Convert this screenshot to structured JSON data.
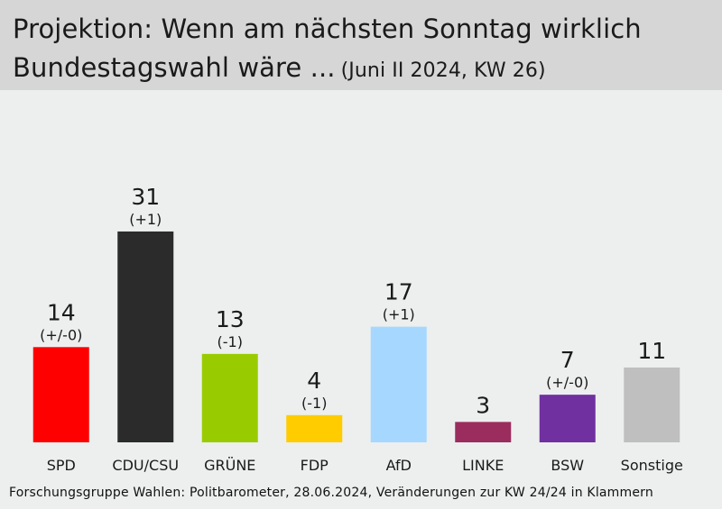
{
  "header": {
    "title_line1": "Projektion: Wenn am nächsten Sonntag wirklich",
    "title_line2": "Bundestagswahl wäre ...",
    "subtitle": "(Juni II 2024, KW 26)"
  },
  "footer": {
    "source": "Forschungsgruppe Wahlen: Politbarometer, 28.06.2024, Veränderungen zur KW 24/24 in Klammern"
  },
  "chart_data": {
    "type": "bar",
    "title": "Projektion: Wenn am nächsten Sonntag wirklich Bundestagswahl wäre ...",
    "subtitle": "(Juni II 2024, KW 26)",
    "ylim": [
      0,
      35
    ],
    "grid": false,
    "categories": [
      "SPD",
      "CDU/CSU",
      "GRÜNE",
      "FDP",
      "AfD",
      "LINKE",
      "BSW",
      "Sonstige"
    ],
    "values": [
      14,
      31,
      13,
      4,
      17,
      3,
      7,
      11
    ],
    "changes": [
      "(+/-0)",
      "(+1)",
      "(-1)",
      "(-1)",
      "(+1)",
      "",
      "(+/-0)",
      ""
    ],
    "colors": [
      "#ff0000",
      "#2b2b2b",
      "#99cc00",
      "#ffcc00",
      "#a6d8ff",
      "#9b2d5e",
      "#7030a0",
      "#bfbfbf"
    ]
  }
}
